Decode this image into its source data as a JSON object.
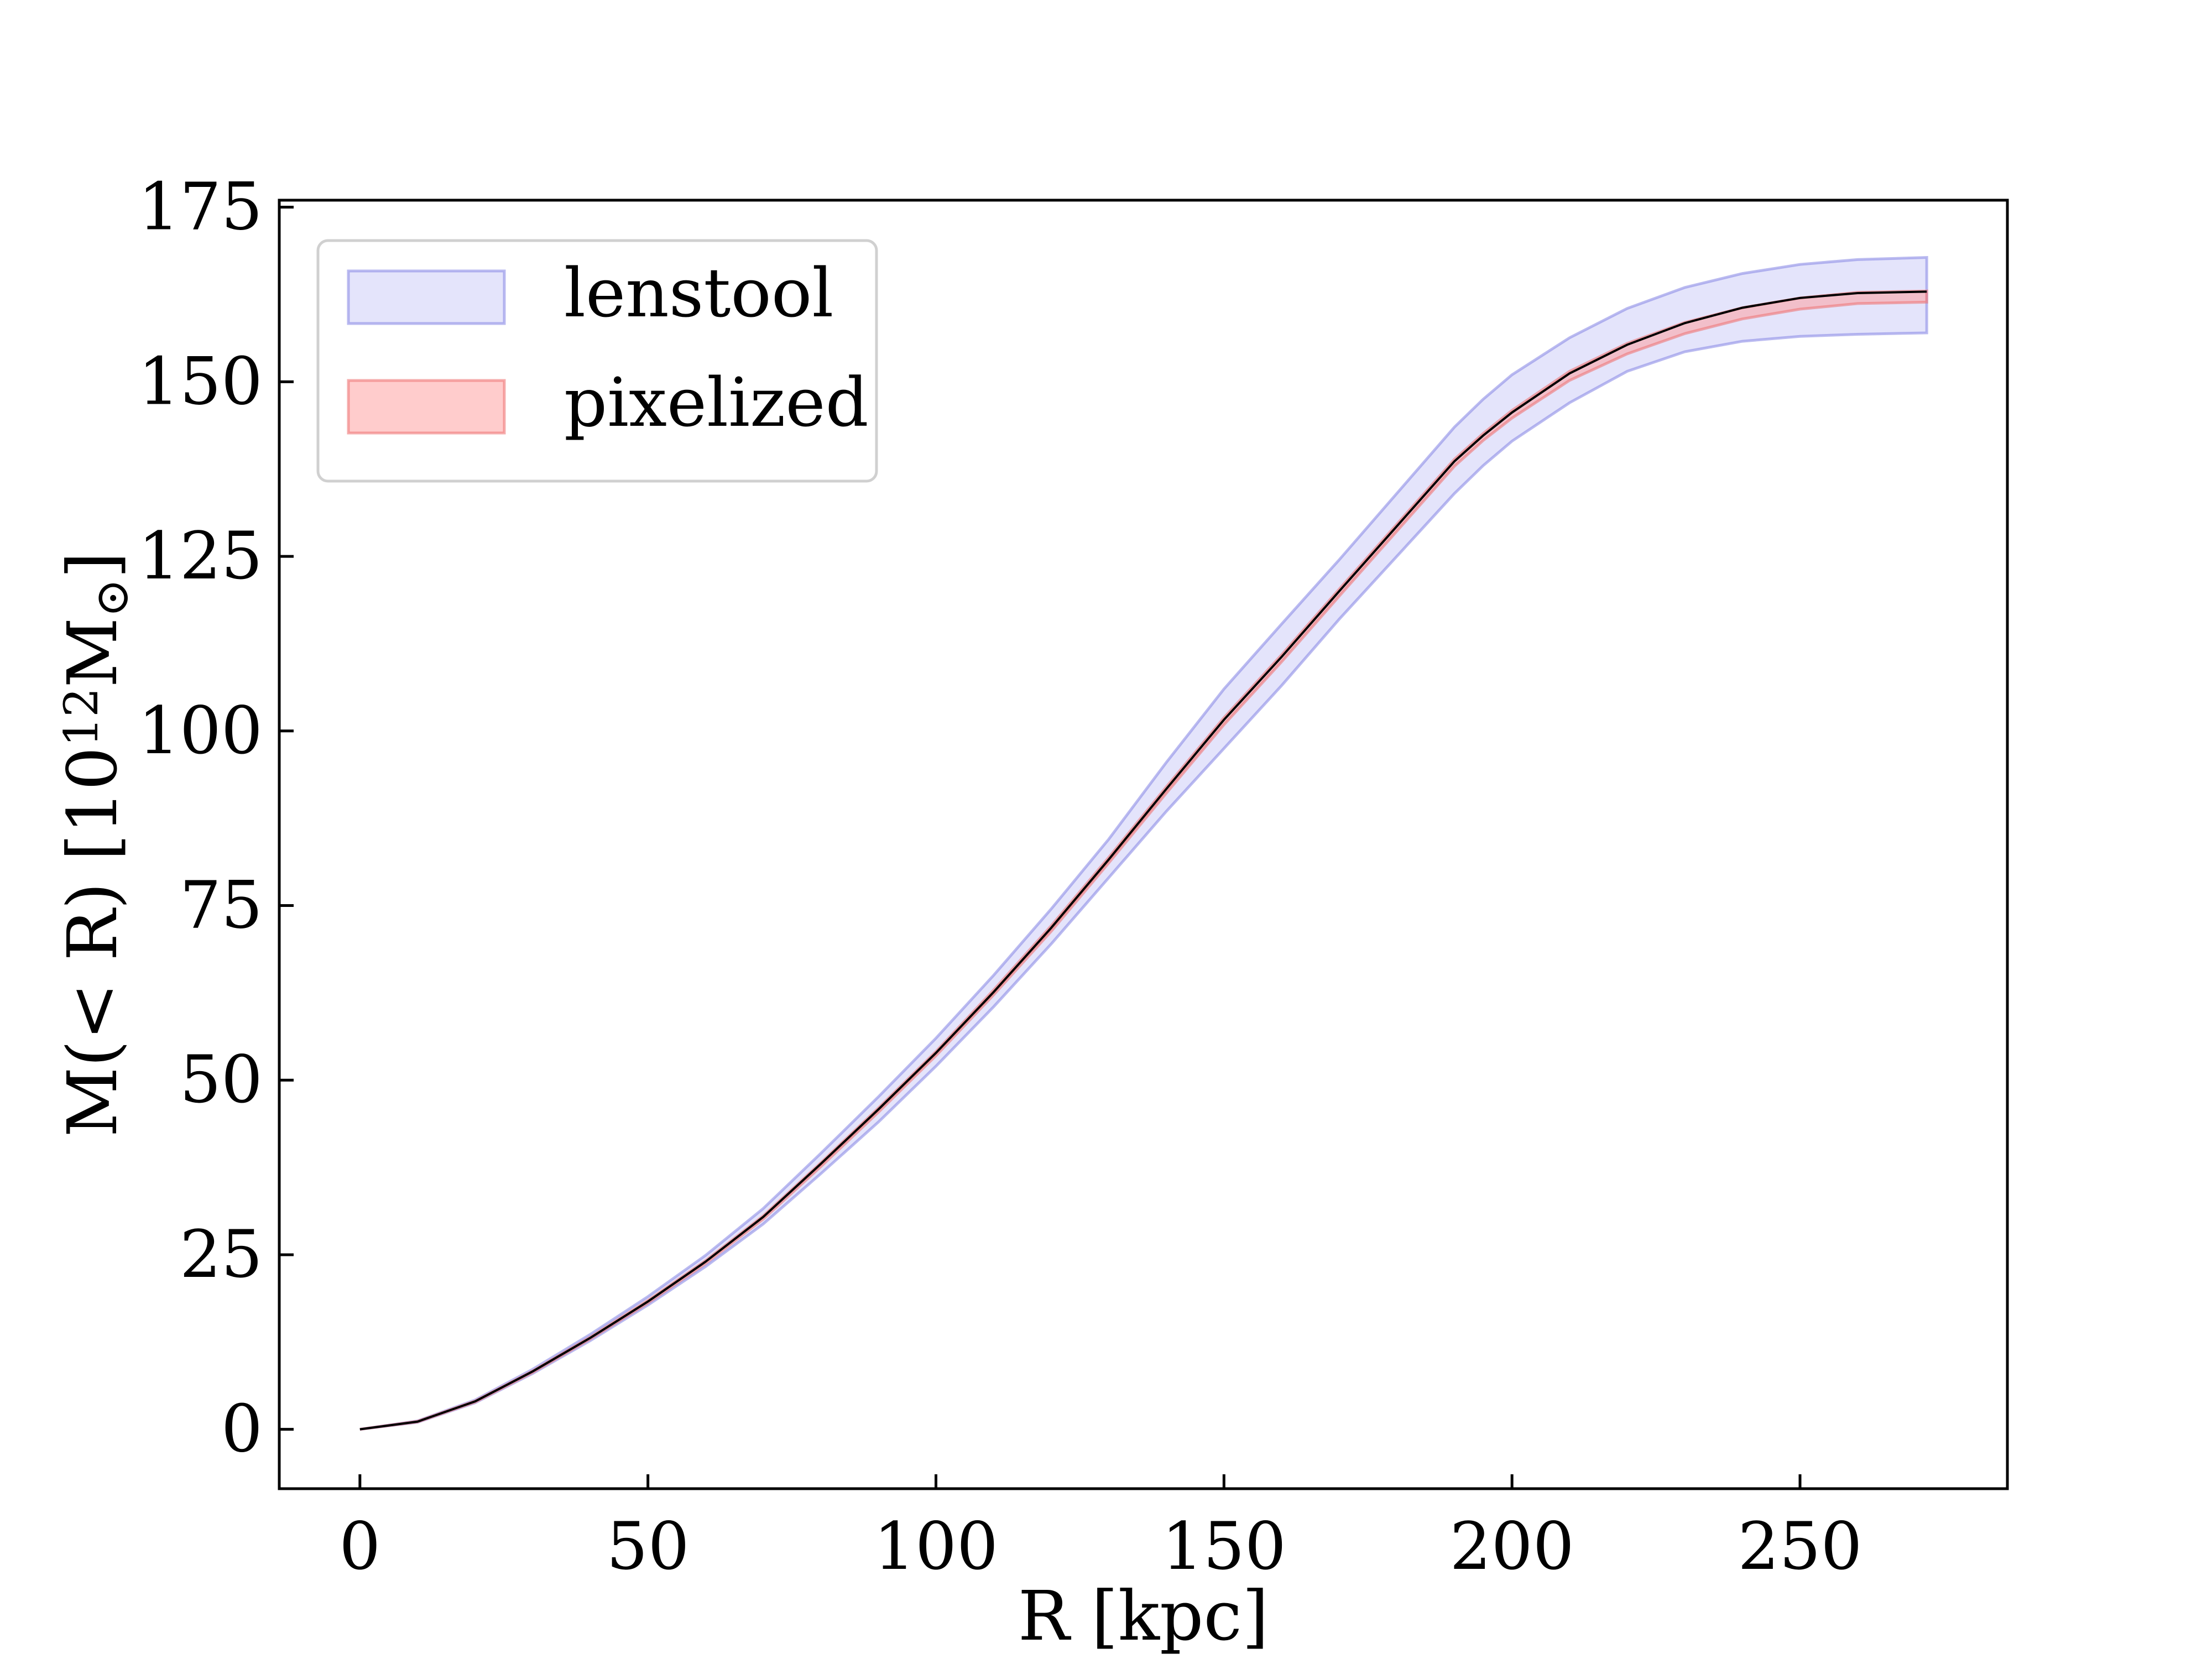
{
  "chart_data": {
    "type": "area",
    "xlabel": "R [kpc]",
    "ylabel": {
      "main": "M(< R) [10",
      "exp": "12",
      "unit": "M",
      "sub": "⊙",
      "close": "]"
    },
    "xlim": [
      -14,
      286
    ],
    "ylim": [
      -8.5,
      176
    ],
    "xticks": [
      0,
      50,
      100,
      150,
      200,
      250
    ],
    "yticks": [
      0,
      25,
      50,
      75,
      100,
      125,
      150,
      175
    ],
    "grid": false,
    "legend_position": "upper-left",
    "series": [
      {
        "name": "lenstool",
        "kind": "band",
        "fill": "#aaaaf2",
        "fill_opacity": 0.32,
        "edge": "#8c8ce6",
        "x": [
          0,
          10,
          20,
          30,
          40,
          50,
          60,
          70,
          80,
          90,
          100,
          110,
          120,
          130,
          140,
          150,
          160,
          170,
          180,
          190,
          195,
          200,
          210,
          220,
          230,
          240,
          250,
          260,
          272
        ],
        "upper": [
          0,
          1.2,
          4.2,
          8.6,
          13.6,
          19.0,
          24.9,
          31.6,
          39.5,
          47.6,
          56.0,
          65.0,
          74.5,
          84.5,
          95.5,
          106.0,
          115.3,
          124.5,
          134.0,
          143.5,
          147.5,
          151.0,
          156.3,
          160.5,
          163.5,
          165.5,
          166.8,
          167.5,
          167.8
        ],
        "lower": [
          0,
          1.0,
          3.8,
          8.0,
          12.7,
          17.8,
          23.3,
          29.4,
          36.6,
          44.0,
          52.0,
          60.5,
          69.5,
          79.0,
          88.5,
          97.5,
          106.5,
          116.0,
          125.0,
          134.0,
          138.0,
          141.5,
          147.0,
          151.5,
          154.3,
          155.8,
          156.5,
          156.8,
          157.0
        ]
      },
      {
        "name": "pixelized",
        "kind": "band",
        "fill": "#ff9999",
        "fill_opacity": 0.5,
        "edge": "#ee7777",
        "x": [
          0,
          10,
          20,
          30,
          40,
          50,
          60,
          70,
          80,
          90,
          100,
          110,
          120,
          130,
          140,
          150,
          160,
          170,
          180,
          190,
          195,
          200,
          210,
          220,
          230,
          240,
          250,
          260,
          272
        ],
        "upper": [
          0,
          1.15,
          4.05,
          8.35,
          13.2,
          18.45,
          24.15,
          30.55,
          38.15,
          46.0,
          54.1,
          62.9,
          72.1,
          81.9,
          92.0,
          101.9,
          110.9,
          120.3,
          129.6,
          138.9,
          142.6,
          145.9,
          151.5,
          155.5,
          158.5,
          160.6,
          162.0,
          162.8,
          163.0
        ],
        "lower": [
          0,
          1.05,
          3.9,
          8.15,
          12.95,
          18.1,
          23.75,
          30.1,
          37.6,
          45.4,
          53.5,
          62.2,
          71.3,
          81.1,
          91.1,
          100.9,
          109.9,
          119.3,
          128.6,
          137.9,
          141.6,
          144.8,
          150.2,
          154.0,
          156.9,
          159.0,
          160.4,
          161.2,
          161.4
        ]
      },
      {
        "kind": "line",
        "color": "#000000",
        "x": [
          0,
          10,
          20,
          30,
          40,
          50,
          60,
          70,
          80,
          90,
          100,
          110,
          120,
          130,
          140,
          150,
          160,
          170,
          180,
          190,
          195,
          200,
          210,
          220,
          230,
          240,
          250,
          260,
          272
        ],
        "y": [
          0,
          1.1,
          4.0,
          8.3,
          13.1,
          18.3,
          24.0,
          30.4,
          38.0,
          45.8,
          53.9,
          62.6,
          71.8,
          81.6,
          91.7,
          101.6,
          110.6,
          120.0,
          129.3,
          138.6,
          142.3,
          145.6,
          151.2,
          155.3,
          158.4,
          160.6,
          162.0,
          162.7,
          162.9
        ]
      }
    ]
  }
}
